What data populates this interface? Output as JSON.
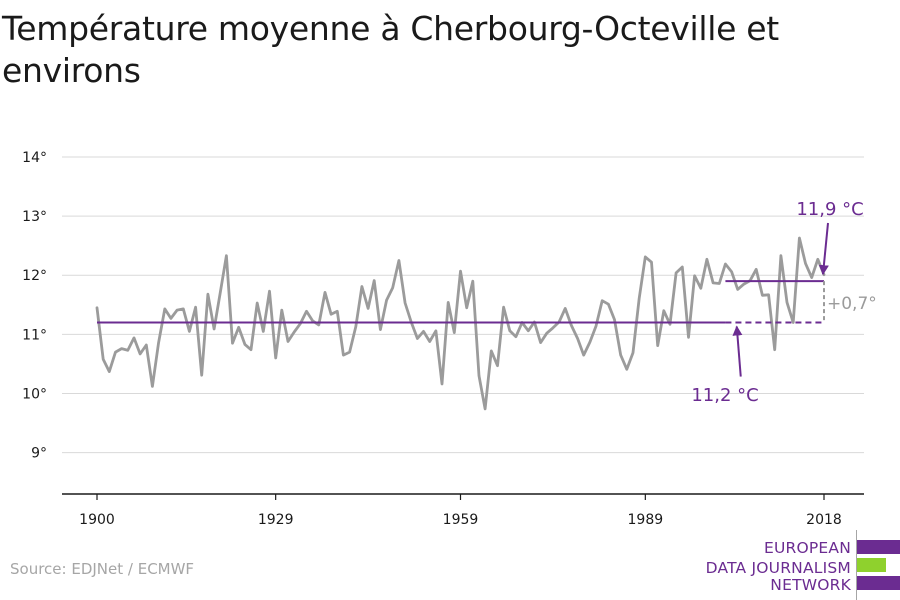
{
  "title": "Température moyenne à Cherbourg-Octeville et environs",
  "source": "Source: EDJNet / ECMWF",
  "logo": {
    "lines": [
      "EUROPEAN",
      "DATA JOURNALISM",
      "NETWORK"
    ],
    "colors": [
      "#6b2c91",
      "#8fd12d",
      "#6b2c91"
    ]
  },
  "colors": {
    "series": "#9b9b9b",
    "accent": "#6b2c91",
    "grid": "#d9d9d9",
    "axis": "#1a1a1a",
    "delta": "#9b9b9b"
  },
  "chart_data": {
    "type": "line",
    "title": "Température moyenne à Cherbourg-Octeville et environs",
    "xlabel": "",
    "ylabel": "",
    "xlim": [
      1900,
      2018
    ],
    "ylim": [
      8.3,
      14
    ],
    "yticks": [
      9,
      10,
      11,
      12,
      13,
      14
    ],
    "ytick_labels": [
      "9°",
      "10°",
      "11°",
      "12°",
      "13°",
      "14°"
    ],
    "xticks": [
      1900,
      1929,
      1959,
      1989,
      2018
    ],
    "xtick_labels": [
      "1900",
      "1929",
      "1959",
      "1989",
      "2018"
    ],
    "grid": true,
    "series": [
      {
        "x": [
          1900,
          1901,
          1902,
          1903,
          1904,
          1905,
          1906,
          1907,
          1908,
          1909,
          1910,
          1911,
          1912,
          1913,
          1914,
          1915,
          1916,
          1917,
          1918,
          1919,
          1920,
          1921,
          1922,
          1923,
          1924,
          1925,
          1926,
          1927,
          1928,
          1929,
          1930,
          1931,
          1932,
          1933,
          1934,
          1935,
          1936,
          1937,
          1938,
          1939,
          1940,
          1941,
          1942,
          1943,
          1944,
          1945,
          1946,
          1947,
          1948,
          1949,
          1950,
          1951,
          1952,
          1953,
          1954,
          1955,
          1956,
          1957,
          1958,
          1959,
          1960,
          1961,
          1962,
          1963,
          1964,
          1965,
          1966,
          1967,
          1968,
          1969,
          1970,
          1971,
          1972,
          1973,
          1974,
          1975,
          1976,
          1977,
          1978,
          1979,
          1980,
          1981,
          1982,
          1983,
          1984,
          1985,
          1986,
          1987,
          1988,
          1989,
          1990,
          1991,
          1992,
          1993,
          1994,
          1995,
          1996,
          1997,
          1998,
          1999,
          2000,
          2001,
          2002,
          2003,
          2004,
          2005,
          2006,
          2007,
          2008,
          2009,
          2010,
          2011,
          2012,
          2013,
          2014,
          2015,
          2016,
          2017,
          2018
        ],
        "values": [
          11.45,
          10.58,
          10.37,
          10.7,
          10.76,
          10.73,
          10.94,
          10.67,
          10.82,
          10.12,
          10.86,
          11.43,
          11.27,
          11.41,
          11.43,
          11.05,
          11.46,
          10.31,
          11.68,
          11.09,
          11.7,
          12.33,
          10.85,
          11.12,
          10.83,
          10.74,
          11.53,
          11.05,
          11.73,
          10.6,
          11.41,
          10.88,
          11.04,
          11.18,
          11.39,
          11.23,
          11.16,
          11.71,
          11.34,
          11.39,
          10.65,
          10.7,
          11.13,
          11.81,
          11.44,
          11.91,
          11.08,
          11.58,
          11.79,
          12.25,
          11.53,
          11.21,
          10.93,
          11.05,
          10.88,
          11.06,
          10.16,
          11.54,
          11.03,
          12.07,
          11.45,
          11.9,
          10.3,
          9.74,
          10.72,
          10.47,
          11.46,
          11.06,
          10.96,
          11.2,
          11.06,
          11.21,
          10.86,
          11.02,
          11.11,
          11.21,
          11.44,
          11.15,
          10.93,
          10.65,
          10.87,
          11.14,
          11.57,
          11.51,
          11.25,
          10.65,
          10.41,
          10.69,
          11.61,
          12.31,
          12.22,
          10.81,
          11.4,
          11.17,
          12.04,
          12.14,
          10.95,
          11.99,
          11.78,
          12.27,
          11.87,
          11.86,
          12.19,
          12.06,
          11.76,
          11.85,
          11.91,
          12.1,
          11.66,
          11.67,
          10.74,
          12.33,
          11.54,
          11.2,
          12.63,
          12.2,
          11.96,
          12.27,
          12.01
        ]
      }
    ],
    "annotations": [
      {
        "label": "11,2 °C",
        "value": 11.2,
        "from": 1900,
        "to": 2002,
        "dashed_to": 2018
      },
      {
        "label": "11,9 °C",
        "value": 11.9,
        "from": 2002,
        "to": 2018
      },
      {
        "label": "+0,7°",
        "from_value": 11.2,
        "to_value": 11.9,
        "x": 2018
      }
    ]
  }
}
